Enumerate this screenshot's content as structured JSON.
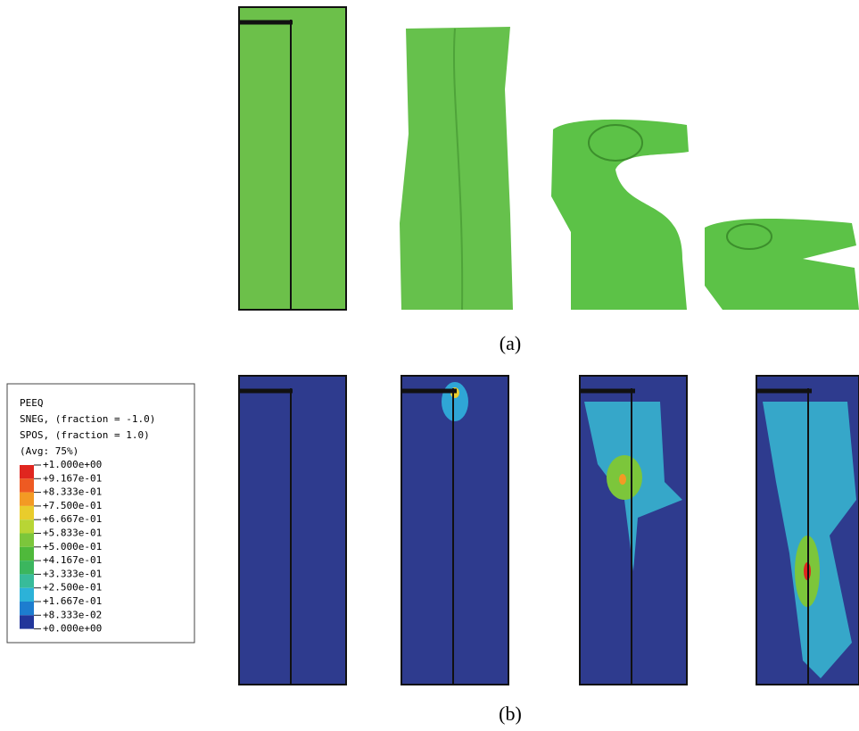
{
  "captions": {
    "a": "(a)",
    "b": "(b)"
  },
  "legend": {
    "title": "PEEQ",
    "lines": [
      "SNEG, (fraction = -1.0)",
      "SPOS, (fraction = 1.0)",
      "(Avg: 75%)"
    ],
    "labels": [
      "+1.000e+00",
      "+9.167e-01",
      "+8.333e-01",
      "+7.500e-01",
      "+6.667e-01",
      "+5.833e-01",
      "+5.000e-01",
      "+4.167e-01",
      "+3.333e-01",
      "+2.500e-01",
      "+1.667e-01",
      "+8.333e-02",
      "+0.000e+00"
    ],
    "colors": [
      "#e0261f",
      "#ee5a22",
      "#f39a24",
      "#e9cc2c",
      "#b8d535",
      "#7cc63b",
      "#4fb93b",
      "#3bb65e",
      "#38bb9a",
      "#2cb2d8",
      "#1d7dcf",
      "#22369b"
    ]
  }
}
